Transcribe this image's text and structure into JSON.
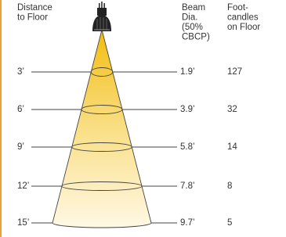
{
  "headers": {
    "distance": [
      "Distance",
      "to Floor"
    ],
    "beam": [
      "Beam",
      "Dia.",
      "(50%",
      "CBCP)"
    ],
    "footcandles": [
      "Foot-",
      "candles",
      "on Floor"
    ]
  },
  "rows": [
    [
      "3’",
      "1.9’",
      "127"
    ],
    [
      "6’",
      "3.9’",
      "32"
    ],
    [
      "9’",
      "5.8’",
      "14"
    ],
    [
      "12’",
      "7.8’",
      "8"
    ],
    [
      "15’",
      "9.7’",
      "5"
    ]
  ]
}
